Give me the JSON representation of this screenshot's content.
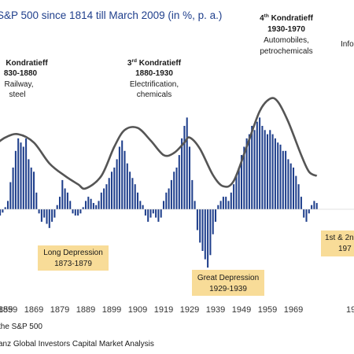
{
  "chart_data": {
    "type": "bar",
    "title": "S&P 500 since 1814 till March 2009 (in %, p. a.)",
    "ylabel": "",
    "xlabel": "",
    "x_range": [
      1849,
      1978
    ],
    "ylim": [
      -0.16,
      0.32
    ],
    "x_ticks": [
      1859,
      1869,
      1879,
      1889,
      1899,
      1909,
      1919,
      1929,
      1939,
      1949,
      1959,
      1969
    ],
    "x_tick_labels": [
      "1859",
      "1869",
      "1879",
      "1889",
      "1899",
      "1909",
      "1919",
      "1929",
      "1939",
      "1949",
      "1959",
      "1969"
    ],
    "bar_color": "#1f3f8c",
    "curve_color": "#555555",
    "callout_color": "#f8dc98",
    "years": [
      1852,
      1853,
      1854,
      1855,
      1856,
      1857,
      1858,
      1859,
      1860,
      1861,
      1862,
      1863,
      1864,
      1865,
      1866,
      1867,
      1868,
      1869,
      1870,
      1871,
      1872,
      1873,
      1874,
      1875,
      1876,
      1877,
      1878,
      1879,
      1880,
      1881,
      1882,
      1883,
      1884,
      1885,
      1886,
      1887,
      1888,
      1889,
      1890,
      1891,
      1892,
      1893,
      1894,
      1895,
      1896,
      1897,
      1898,
      1899,
      1900,
      1901,
      1902,
      1903,
      1904,
      1905,
      1906,
      1907,
      1908,
      1909,
      1910,
      1911,
      1912,
      1913,
      1914,
      1915,
      1916,
      1917,
      1918,
      1919,
      1920,
      1921,
      1922,
      1923,
      1924,
      1925,
      1926,
      1927,
      1928,
      1929,
      1930,
      1931,
      1932,
      1933,
      1934,
      1935,
      1936,
      1937,
      1938,
      1939,
      1940,
      1941,
      1942,
      1943,
      1944,
      1945,
      1946,
      1947,
      1948,
      1949,
      1950,
      1951,
      1952,
      1953,
      1954,
      1955,
      1956,
      1957,
      1958,
      1959,
      1960,
      1961,
      1962,
      1963,
      1964,
      1965,
      1966,
      1967,
      1968,
      1969,
      1970,
      1971,
      1972,
      1973,
      1974,
      1975,
      1976,
      1977,
      1978
    ],
    "values": [
      -0.01,
      -0.025,
      -0.02,
      -0.018,
      -0.015,
      -0.008,
      0.005,
      0.02,
      0.065,
      0.1,
      0.14,
      0.17,
      0.16,
      0.15,
      0.17,
      0.12,
      0.1,
      0.09,
      0.04,
      -0.01,
      -0.03,
      -0.02,
      -0.035,
      -0.045,
      -0.03,
      -0.02,
      0.01,
      0.03,
      0.07,
      0.05,
      0.04,
      0.02,
      -0.01,
      -0.015,
      -0.015,
      -0.01,
      0.005,
      0.02,
      0.03,
      0.025,
      0.015,
      0.01,
      0.02,
      0.04,
      0.05,
      0.06,
      0.075,
      0.09,
      0.1,
      0.12,
      0.15,
      0.165,
      0.14,
      0.11,
      0.09,
      0.075,
      0.06,
      0.04,
      0.02,
      0.01,
      -0.015,
      -0.03,
      -0.02,
      -0.01,
      -0.02,
      -0.03,
      -0.02,
      0.02,
      0.04,
      0.05,
      0.07,
      0.09,
      0.1,
      0.13,
      0.17,
      0.2,
      0.22,
      0.15,
      0.07,
      0.02,
      -0.05,
      -0.08,
      -0.1,
      -0.12,
      -0.14,
      -0.11,
      -0.06,
      -0.03,
      0.01,
      0.02,
      0.03,
      0.03,
      0.02,
      0.04,
      0.06,
      0.08,
      0.1,
      0.13,
      0.15,
      0.17,
      0.18,
      0.2,
      0.19,
      0.21,
      0.22,
      0.2,
      0.19,
      0.18,
      0.19,
      0.18,
      0.17,
      0.16,
      0.155,
      0.14,
      0.14,
      0.12,
      0.11,
      0.1,
      0.08,
      0.06,
      0.03,
      -0.02,
      -0.03,
      -0.01,
      0.01,
      0.02,
      0.015
    ],
    "wave_curve_values": [
      [
        1849,
        0.135
      ],
      [
        1853,
        0.15
      ],
      [
        1858,
        0.172
      ],
      [
        1863,
        0.18
      ],
      [
        1869,
        0.16
      ],
      [
        1875,
        0.11
      ],
      [
        1881,
        0.08
      ],
      [
        1886,
        0.06
      ],
      [
        1889,
        0.05
      ],
      [
        1895,
        0.08
      ],
      [
        1900,
        0.15
      ],
      [
        1904,
        0.19
      ],
      [
        1909,
        0.195
      ],
      [
        1914,
        0.165
      ],
      [
        1919,
        0.13
      ],
      [
        1923,
        0.135
      ],
      [
        1927,
        0.16
      ],
      [
        1929,
        0.172
      ],
      [
        1933,
        0.145
      ],
      [
        1938,
        0.082
      ],
      [
        1942,
        0.055
      ],
      [
        1946,
        0.068
      ],
      [
        1951,
        0.15
      ],
      [
        1956,
        0.235
      ],
      [
        1960,
        0.265
      ],
      [
        1963,
        0.258
      ],
      [
        1967,
        0.21
      ],
      [
        1972,
        0.13
      ],
      [
        1975,
        0.09
      ],
      [
        1978,
        0.08
      ]
    ],
    "annotations": {
      "k2_title": "Kondratieff",
      "k2_years": "830-1880",
      "k2_sub1": "Railway,",
      "k2_sub2": "steel",
      "k3_num": "3",
      "k3_sup": "rd",
      "k3_title": " Kondratieff",
      "k3_years": "1880-1930",
      "k3_sub1": "Electrification,",
      "k3_sub2": "chemicals",
      "k4_num": "4",
      "k4_sup": "th",
      "k4_title": " Kondratieff",
      "k4_years": "1930-1970",
      "k4_sub1": "Automobiles,",
      "k4_sub2": "petrochemicals",
      "k5_partial": "Info",
      "long_depression_label": "Long Depression",
      "long_depression_years": "1873-1879",
      "great_depression_label": "Great Depression",
      "great_depression_years": "1929-1939",
      "oil_crisis_label": "1st & 2n",
      "oil_crisis_sup": "",
      "oil_crisis_years": "197"
    },
    "source_line1": " the S&P 500",
    "source_line2": "anz Global Investors Capital Market Analysis",
    "partial_tick_left": "859",
    "partial_tick_right": "19"
  }
}
